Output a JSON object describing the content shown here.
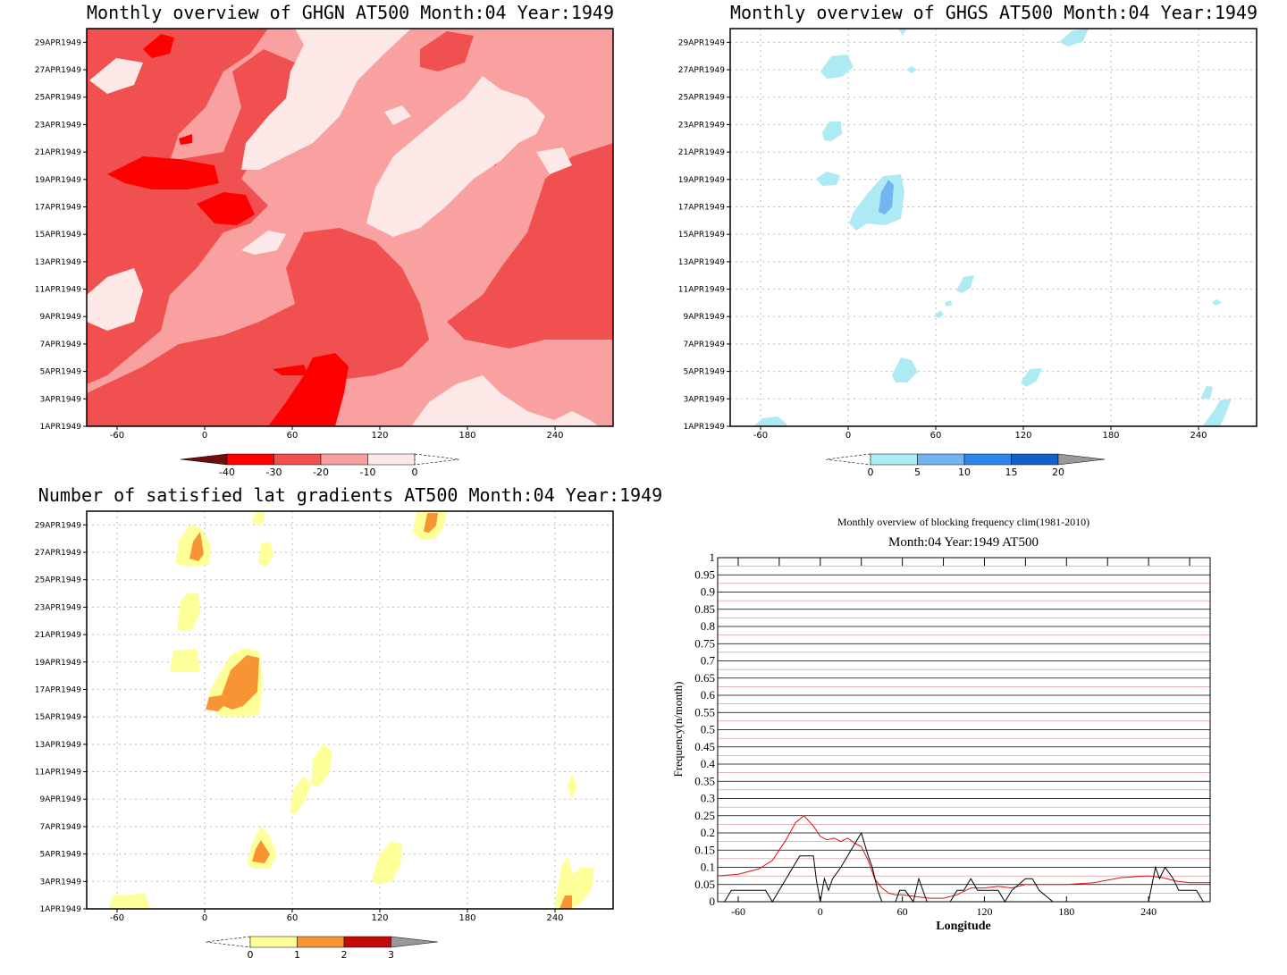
{
  "chart_data": [
    {
      "type": "heatmap",
      "title": "Monthly overview of GHGN AT500 Month:04 Year:1949",
      "x_ticks": [
        "-60",
        "0",
        "60",
        "120",
        "180",
        "240"
      ],
      "y_ticks": [
        "1APR1949",
        "3APR1949",
        "5APR1949",
        "7APR1949",
        "9APR1949",
        "11APR1949",
        "13APR1949",
        "15APR1949",
        "17APR1949",
        "19APR1949",
        "21APR1949",
        "23APR1949",
        "25APR1949",
        "27APR1949",
        "29APR1949"
      ],
      "colorbar": {
        "labels": [
          "-40",
          "-30",
          "-20",
          "-10",
          "0"
        ],
        "colors": [
          "#6e0f0f",
          "#ff0000",
          "#f05050",
          "#f8a0a0",
          "#fde8e8"
        ]
      },
      "base_color": "#f9a0a0",
      "grid": false
    },
    {
      "type": "heatmap",
      "title": "Monthly overview of GHGS AT500 Month:04 Year:1949",
      "x_ticks": [
        "-60",
        "0",
        "60",
        "120",
        "180",
        "240"
      ],
      "y_ticks": [
        "1APR1949",
        "3APR1949",
        "5APR1949",
        "7APR1949",
        "9APR1949",
        "11APR1949",
        "13APR1949",
        "15APR1949",
        "17APR1949",
        "19APR1949",
        "21APR1949",
        "23APR1949",
        "25APR1949",
        "27APR1949",
        "29APR1949"
      ],
      "colorbar": {
        "labels": [
          "0",
          "5",
          "10",
          "15",
          "20"
        ],
        "colors": [
          "#aeeaf4",
          "#73b5f0",
          "#2d86ea",
          "#1060c8",
          "#999999"
        ]
      },
      "grid": true
    },
    {
      "type": "heatmap",
      "title": "Number of satisfied lat gradients AT500 Month:04 Year:1949",
      "x_ticks": [
        "-60",
        "0",
        "60",
        "120",
        "180",
        "240"
      ],
      "y_ticks": [
        "1APR1949",
        "3APR1949",
        "5APR1949",
        "7APR1949",
        "9APR1949",
        "11APR1949",
        "13APR1949",
        "15APR1949",
        "17APR1949",
        "19APR1949",
        "21APR1949",
        "23APR1949",
        "25APR1949",
        "27APR1949",
        "29APR1949"
      ],
      "colorbar": {
        "labels": [
          "0",
          "1",
          "2",
          "3"
        ],
        "colors": [
          "#ffff99",
          "#f79433",
          "#c40b0b",
          "#999999"
        ]
      },
      "grid": true
    },
    {
      "type": "line",
      "title": "Monthly overview of blocking frequency clim(1981-2010)",
      "subtitle": "Month:04 Year:1949  AT500",
      "xlabel": "Longitude",
      "ylabel": "Frequency(n/month)",
      "x_ticks": [
        "-60",
        "0",
        "60",
        "120",
        "180",
        "240"
      ],
      "y_ticks": [
        "0",
        "0.05",
        "0.1",
        "0.15",
        "0.2",
        "0.25",
        "0.3",
        "0.35",
        "0.4",
        "0.45",
        "0.5",
        "0.55",
        "0.6",
        "0.65",
        "0.7",
        "0.75",
        "0.8",
        "0.85",
        "0.9",
        "0.95",
        "1"
      ],
      "xlim": [
        -75,
        285
      ],
      "ylim": [
        0,
        1
      ],
      "series": [
        {
          "color": "#e01010",
          "x": [
            -75,
            -60,
            -45,
            -35,
            -25,
            -18,
            -12,
            -5,
            0,
            5,
            10,
            15,
            20,
            25,
            30,
            35,
            40,
            45,
            50,
            55,
            60,
            70,
            80,
            90,
            100,
            110,
            120,
            130,
            140,
            150,
            160,
            180,
            200,
            220,
            240,
            250,
            260,
            270,
            285
          ],
          "y": [
            0.075,
            0.08,
            0.095,
            0.12,
            0.18,
            0.23,
            0.25,
            0.22,
            0.19,
            0.18,
            0.185,
            0.175,
            0.185,
            0.17,
            0.16,
            0.12,
            0.065,
            0.04,
            0.025,
            0.02,
            0.02,
            0.015,
            0.01,
            0.01,
            0.02,
            0.04,
            0.04,
            0.045,
            0.04,
            0.05,
            0.05,
            0.05,
            0.055,
            0.07,
            0.075,
            0.07,
            0.06,
            0.055,
            0.055
          ]
        },
        {
          "color": "#000000",
          "x": [
            -75,
            -70,
            -65,
            -40,
            -35,
            -20,
            -15,
            -5,
            -3,
            0,
            3,
            6,
            9,
            15,
            20,
            25,
            30,
            35,
            38,
            42,
            45,
            55,
            58,
            62,
            68,
            72,
            78,
            80,
            85,
            95,
            100,
            105,
            110,
            115,
            130,
            135,
            140,
            150,
            155,
            160,
            170,
            175,
            180,
            240,
            245,
            248,
            252,
            258,
            262,
            265,
            275,
            280,
            285
          ],
          "y": [
            0,
            0,
            0.033,
            0.033,
            0,
            0.1,
            0.133,
            0.133,
            0.067,
            0,
            0.067,
            0.033,
            0.067,
            0.1,
            0.133,
            0.167,
            0.2,
            0.133,
            0.1,
            0.033,
            0,
            0,
            0.033,
            0.033,
            0,
            0.067,
            0,
            0,
            0,
            0,
            0.033,
            0.033,
            0.067,
            0.033,
            0.033,
            0,
            0.033,
            0.067,
            0.067,
            0.033,
            0,
            0,
            0,
            0,
            0.1,
            0.067,
            0.1,
            0.067,
            0.033,
            0.033,
            0.033,
            0,
            0
          ]
        }
      ]
    }
  ]
}
